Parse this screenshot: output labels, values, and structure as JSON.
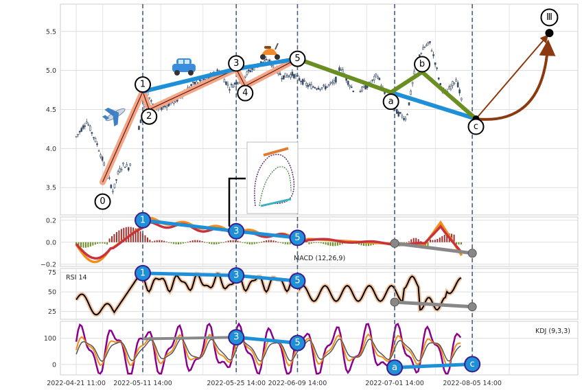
{
  "chart_data": {
    "type": "candlestick-elliott-wave",
    "x_tick_labels": [
      "2022-04-21 11:00",
      "2022-05-11 14:00",
      "2022-05-25 14:00",
      "2022-06-09 14:00",
      "2022-07-01 14:00",
      "2022-08-05 14:00"
    ],
    "price_panel": {
      "ylim": [
        3.15,
        5.85
      ],
      "yticks": [
        "3.5",
        "4.0",
        "4.5",
        "5.0",
        "5.5"
      ],
      "price_path": [
        [
          0.0,
          4.15
        ],
        [
          2.0,
          4.35
        ],
        [
          4.0,
          4.05
        ],
        [
          6.0,
          3.65
        ],
        [
          7.0,
          3.45
        ],
        [
          8.0,
          3.7
        ],
        [
          9.0,
          3.8
        ],
        [
          10.0,
          3.75
        ],
        [
          12.0,
          4.3
        ],
        [
          13.5,
          4.72
        ],
        [
          15.0,
          4.5
        ],
        [
          17.0,
          4.55
        ],
        [
          19.0,
          4.62
        ],
        [
          22.0,
          4.82
        ],
        [
          25.0,
          4.9
        ],
        [
          27.0,
          5.0
        ],
        [
          29.0,
          4.78
        ],
        [
          31.0,
          4.88
        ],
        [
          33.0,
          5.0
        ],
        [
          35.0,
          5.1
        ],
        [
          36.5,
          5.12
        ],
        [
          39.0,
          4.92
        ],
        [
          41.0,
          4.95
        ],
        [
          44.0,
          4.8
        ],
        [
          47.0,
          4.78
        ],
        [
          49.0,
          4.85
        ],
        [
          50.0,
          5.05
        ],
        [
          51.5,
          4.85
        ],
        [
          53.0,
          4.7
        ],
        [
          56.0,
          4.85
        ],
        [
          57.0,
          4.95
        ],
        [
          59.0,
          4.6
        ],
        [
          61.0,
          4.45
        ],
        [
          62.5,
          4.38
        ],
        [
          64.0,
          4.95
        ],
        [
          65.0,
          5.2
        ],
        [
          66.0,
          5.3
        ],
        [
          67.0,
          5.35
        ],
        [
          68.0,
          5.1
        ],
        [
          69.0,
          4.8
        ],
        [
          70.0,
          4.7
        ],
        [
          72.0,
          4.9
        ],
        [
          73.0,
          4.6
        ]
      ],
      "wave_labels": [
        {
          "label": "0",
          "x": 5.0,
          "y": 3.32
        },
        {
          "label": "1",
          "x": 12.6,
          "y": 4.82
        },
        {
          "label": "2",
          "x": 13.8,
          "y": 4.41
        },
        {
          "label": "3",
          "x": 30.3,
          "y": 5.09
        },
        {
          "label": "4",
          "x": 32.0,
          "y": 4.71
        },
        {
          "label": "5",
          "x": 41.9,
          "y": 5.15
        },
        {
          "label": "a",
          "x": 59.6,
          "y": 4.6
        },
        {
          "label": "b",
          "x": 65.5,
          "y": 5.08
        },
        {
          "label": "c",
          "x": 75.7,
          "y": 4.28
        },
        {
          "label": "Ⅲ",
          "x": 89.6,
          "y": 5.68
        }
      ],
      "impulse_line": [
        [
          5.0,
          3.57
        ],
        [
          12.6,
          4.73
        ],
        [
          13.8,
          4.5
        ],
        [
          30.3,
          5.02
        ],
        [
          32.0,
          4.8
        ],
        [
          41.9,
          5.15
        ]
      ],
      "trend_line_blue": [
        [
          12.6,
          4.73
        ],
        [
          30.3,
          5.02
        ],
        [
          41.9,
          5.15
        ]
      ],
      "trend_line_green": [
        [
          41.9,
          5.15
        ],
        [
          59.6,
          4.72
        ],
        [
          65.5,
          4.98
        ],
        [
          75.7,
          4.38
        ]
      ],
      "trend_line_blue_2": [
        [
          59.6,
          4.72
        ],
        [
          75.7,
          4.38
        ]
      ],
      "projection": [
        [
          75.7,
          4.38
        ],
        [
          89.6,
          5.48
        ]
      ],
      "vlines": [
        12.6,
        30.3,
        41.9,
        60.3,
        75.0
      ]
    },
    "macd_panel": {
      "label": "MACD (12,26,9)",
      "ylim": [
        -0.22,
        0.23
      ],
      "yticks": [
        "0.2",
        "0.0",
        "−0.2"
      ],
      "divergence_top": {
        "points": [
          [
            12.6,
            0.2
          ],
          [
            30.3,
            0.1
          ],
          [
            41.9,
            0.04
          ]
        ],
        "labels": [
          "1",
          "3",
          "5"
        ]
      },
      "divergence_bottom": [
        [
          60.3,
          -0.01
        ],
        [
          75.0,
          -0.1
        ]
      ]
    },
    "rsi_panel": {
      "label": "RSI 14",
      "ylim": [
        15,
        80
      ],
      "yticks": [
        "25",
        "50",
        "75"
      ],
      "divergence_top": {
        "points": [
          [
            12.6,
            74.0
          ],
          [
            30.3,
            71.0
          ],
          [
            41.9,
            64.0
          ]
        ],
        "labels": [
          "1",
          "3",
          "5"
        ]
      },
      "divergence_bottom": [
        [
          60.3,
          37.0
        ],
        [
          75.0,
          31.0
        ]
      ]
    },
    "kdj_panel": {
      "label": "KDJ (9,3,3)",
      "ylim": [
        -40,
        165
      ],
      "yticks": [
        "0",
        "100"
      ],
      "divergence_top": {
        "points": [
          [
            30.3,
            104
          ],
          [
            41.9,
            82
          ]
        ],
        "labels": [
          "3",
          "5"
        ]
      },
      "divergence_bottom": {
        "points": [
          [
            60.3,
            -12
          ],
          [
            75.0,
            1
          ]
        ],
        "labels": [
          "a",
          "c"
        ]
      },
      "grey_line": [
        [
          12.6,
          98
        ],
        [
          30.3,
          104
        ]
      ]
    },
    "colors": {
      "candle": "#374a66",
      "impulse": "#f4a587",
      "trend_blue": "#1f8fd8",
      "trend_green": "#6b8e23",
      "projection": "#8b3a0f",
      "vline": "#4b5f7a",
      "macd_line": "#f28c1b",
      "signal_line": "#c8323c",
      "hist_up": "#a0302b",
      "hist_down": "#6b8e23",
      "rsi": "#000000",
      "kdj_k": "#f28c1b",
      "kdj_d": "#555555",
      "kdj_j": "#8b008b",
      "divergence_grey": "#888888"
    }
  }
}
